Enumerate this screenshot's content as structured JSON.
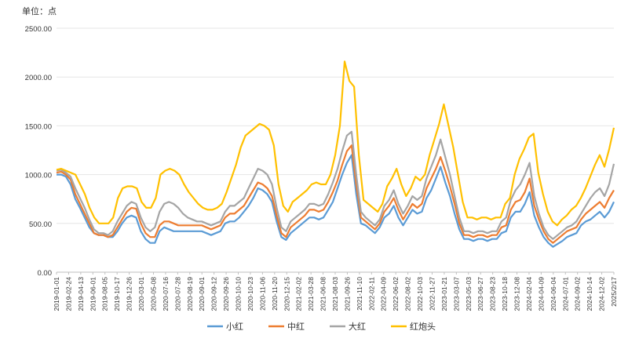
{
  "chart_data": {
    "type": "line",
    "unit_label": "单位：点",
    "ylim": [
      0,
      2500
    ],
    "yticks": [
      "0.00",
      "500.00",
      "1000.00",
      "1500.00",
      "2000.00",
      "2500.00"
    ],
    "grid": "horizontal",
    "legend_position": "bottom",
    "x_tick_labels": [
      "2019-01-01",
      "2019-02-24",
      "2019-04-13",
      "2019-06-01",
      "2019-08-05",
      "2019-10-17",
      "2019-12-26",
      "2020-03-01",
      "2020-05-08",
      "2020-07-16",
      "2020-07-28",
      "2020-08-19",
      "2020-09-01",
      "2020-09-12",
      "2020-09-26",
      "2020-10-10",
      "2020-10-23",
      "2020-11-06",
      "2020-11-20",
      "2020-12-15",
      "2021-02-02",
      "2021-03-28",
      "2021-06-08",
      "2021-08-03",
      "2021-09-26",
      "2021-11-10",
      "2022-02-11",
      "2022-04-09",
      "2022-06-02",
      "2022-08-02",
      "2022-10-03",
      "2022-11-27",
      "2023-01-21",
      "2023-03-07",
      "2023-05-03",
      "2023-06-27",
      "2023-08-23",
      "2023-10-18",
      "2023-12-08",
      "2024-02-04",
      "2024-04-09",
      "2024-06-04",
      "2024-07-01",
      "2024-09-02",
      "2024-10-14",
      "2024-12-02",
      "2025/2/17"
    ],
    "series": [
      {
        "name": "小红",
        "color": "#5B9BD5",
        "values": [
          1000,
          1000,
          980,
          900,
          750,
          660,
          560,
          460,
          400,
          380,
          380,
          360,
          360,
          420,
          500,
          560,
          580,
          560,
          420,
          340,
          300,
          300,
          420,
          460,
          440,
          420,
          420,
          420,
          420,
          420,
          420,
          420,
          400,
          380,
          400,
          420,
          500,
          520,
          520,
          560,
          620,
          680,
          760,
          860,
          840,
          800,
          720,
          520,
          360,
          330,
          400,
          440,
          480,
          520,
          560,
          560,
          540,
          560,
          640,
          720,
          860,
          1000,
          1120,
          1200,
          800,
          500,
          480,
          440,
          400,
          460,
          560,
          600,
          680,
          560,
          480,
          560,
          640,
          600,
          620,
          760,
          840,
          960,
          1080,
          920,
          780,
          600,
          440,
          340,
          340,
          320,
          340,
          340,
          320,
          340,
          340,
          400,
          420,
          560,
          620,
          620,
          700,
          820,
          580,
          460,
          360,
          300,
          260,
          290,
          320,
          360,
          380,
          400,
          480,
          520,
          540,
          580,
          620,
          560,
          620,
          720
        ]
      },
      {
        "name": "中红",
        "color": "#ED7D31",
        "values": [
          1020,
          1030,
          1000,
          950,
          800,
          700,
          600,
          500,
          400,
          380,
          380,
          360,
          380,
          460,
          540,
          620,
          660,
          650,
          500,
          400,
          360,
          360,
          480,
          520,
          520,
          500,
          480,
          480,
          480,
          480,
          480,
          480,
          460,
          440,
          460,
          480,
          560,
          600,
          600,
          640,
          680,
          760,
          840,
          920,
          900,
          860,
          780,
          580,
          400,
          360,
          460,
          500,
          540,
          580,
          640,
          640,
          620,
          640,
          720,
          820,
          940,
          1100,
          1240,
          1300,
          900,
          560,
          520,
          480,
          440,
          500,
          620,
          680,
          760,
          640,
          540,
          620,
          700,
          660,
          700,
          860,
          960,
          1060,
          1180,
          1040,
          880,
          700,
          500,
          380,
          380,
          360,
          380,
          380,
          360,
          380,
          380,
          460,
          480,
          640,
          720,
          740,
          820,
          960,
          680,
          540,
          420,
          340,
          300,
          340,
          380,
          420,
          440,
          460,
          540,
          600,
          640,
          680,
          720,
          660,
          760,
          840
        ]
      },
      {
        "name": "大红",
        "color": "#A5A5A5",
        "values": [
          1040,
          1050,
          1020,
          980,
          860,
          760,
          660,
          540,
          440,
          400,
          400,
          380,
          420,
          520,
          600,
          680,
          720,
          700,
          560,
          460,
          420,
          460,
          620,
          700,
          720,
          700,
          660,
          600,
          560,
          540,
          520,
          520,
          500,
          480,
          500,
          520,
          620,
          680,
          680,
          720,
          760,
          860,
          960,
          1060,
          1040,
          1000,
          900,
          660,
          460,
          420,
          520,
          560,
          600,
          640,
          700,
          700,
          680,
          700,
          800,
          920,
          1060,
          1240,
          1400,
          1440,
          1000,
          620,
          560,
          520,
          480,
          540,
          680,
          740,
          840,
          700,
          600,
          680,
          780,
          740,
          780,
          960,
          1080,
          1200,
          1360,
          1180,
          1000,
          780,
          560,
          420,
          420,
          400,
          420,
          420,
          400,
          420,
          420,
          520,
          560,
          740,
          840,
          900,
          1000,
          1120,
          780,
          600,
          460,
          380,
          340,
          380,
          420,
          460,
          480,
          520,
          600,
          680,
          760,
          820,
          860,
          780,
          900,
          1110
        ]
      },
      {
        "name": "红炮头",
        "color": "#FFC000",
        "values": [
          1050,
          1060,
          1040,
          1020,
          1000,
          900,
          800,
          660,
          560,
          500,
          500,
          500,
          560,
          760,
          860,
          880,
          880,
          860,
          720,
          660,
          660,
          760,
          1000,
          1040,
          1060,
          1040,
          1000,
          900,
          820,
          760,
          700,
          660,
          640,
          640,
          660,
          700,
          820,
          960,
          1100,
          1280,
          1400,
          1440,
          1480,
          1520,
          1500,
          1460,
          1300,
          900,
          680,
          620,
          720,
          760,
          800,
          840,
          900,
          920,
          900,
          900,
          1000,
          1200,
          1500,
          2160,
          1960,
          1900,
          1200,
          740,
          700,
          660,
          620,
          700,
          880,
          960,
          1060,
          900,
          780,
          860,
          980,
          940,
          1000,
          1200,
          1360,
          1520,
          1720,
          1500,
          1280,
          1000,
          720,
          560,
          560,
          540,
          560,
          560,
          540,
          560,
          560,
          700,
          760,
          1000,
          1160,
          1260,
          1380,
          1420,
          1020,
          800,
          620,
          520,
          480,
          540,
          580,
          640,
          680,
          760,
          860,
          980,
          1100,
          1200,
          1080,
          1260,
          1480
        ]
      }
    ]
  }
}
